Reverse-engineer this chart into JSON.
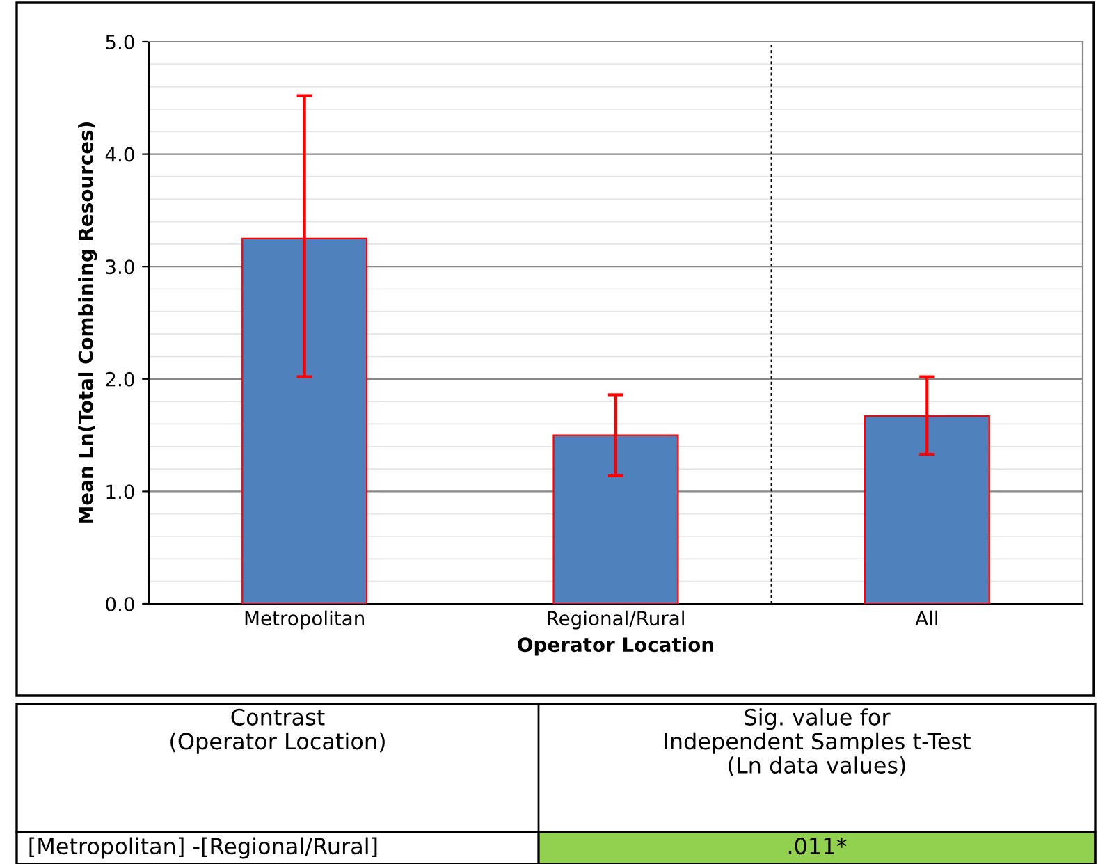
{
  "chart_data": {
    "type": "bar",
    "xlabel": "Operator Location",
    "ylabel": "Mean Ln(Total Combining Resources)",
    "categories": [
      "Metropolitan",
      "Regional/Rural",
      "All"
    ],
    "values": [
      3.25,
      1.5,
      1.67
    ],
    "errors": [
      [
        2.02,
        4.52
      ],
      [
        1.14,
        1.86
      ],
      [
        1.33,
        2.02
      ]
    ],
    "color": "#4f81bd",
    "ylim": [
      0,
      5
    ],
    "yticks": [
      {
        "value": 0,
        "label": "0.0"
      },
      {
        "value": 1,
        "label": "1.0"
      },
      {
        "value": 2,
        "label": "2.0"
      },
      {
        "value": 3,
        "label": "3.0"
      },
      {
        "value": 4,
        "label": "4.0"
      },
      {
        "value": 5,
        "label": "5.0"
      }
    ],
    "grid": "y",
    "annotations": [
      "Contrast\n(Operator Location)",
      "Sig. value for\nIndependent Samples t-Test\n(Ln data values)",
      "[Metropolitan] -[Regional/Rural]",
      ".011*"
    ]
  }
}
